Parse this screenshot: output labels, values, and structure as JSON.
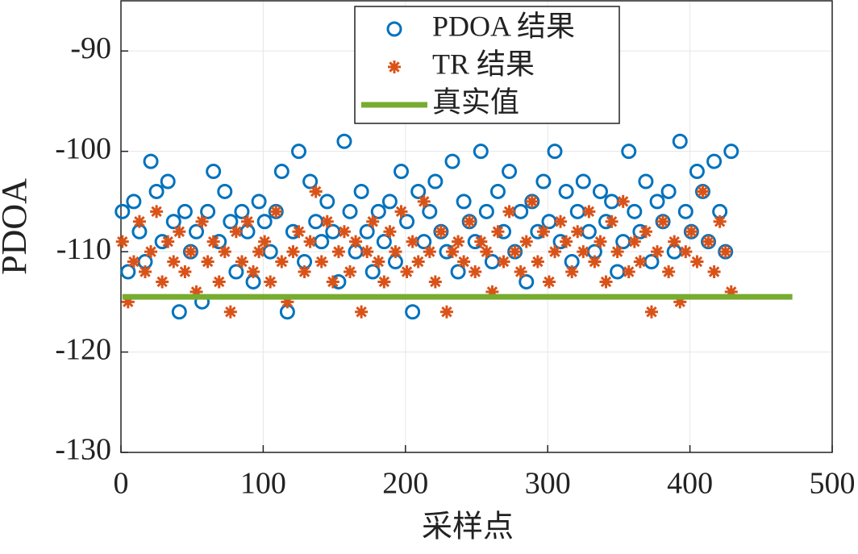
{
  "chart_data": {
    "type": "scatter",
    "xlabel": "采样点",
    "ylabel": "PDOA",
    "xlim": [
      0,
      500
    ],
    "xticks": [
      0,
      100,
      200,
      300,
      400,
      500
    ],
    "ylim": [
      -130,
      -85
    ],
    "yticks": [
      -130,
      -120,
      -110,
      -100,
      -90
    ],
    "grid": true,
    "legend": "north",
    "x": [
      1,
      5,
      9,
      13,
      17,
      21,
      25,
      29,
      33,
      37,
      41,
      45,
      49,
      53,
      57,
      61,
      65,
      69,
      73,
      77,
      81,
      85,
      89,
      93,
      97,
      101,
      105,
      109,
      113,
      117,
      121,
      125,
      129,
      133,
      137,
      141,
      145,
      149,
      153,
      157,
      161,
      165,
      169,
      173,
      177,
      181,
      185,
      189,
      193,
      197,
      201,
      205,
      209,
      213,
      217,
      221,
      225,
      229,
      233,
      237,
      241,
      245,
      249,
      253,
      257,
      261,
      265,
      269,
      273,
      277,
      281,
      285,
      289,
      293,
      297,
      301,
      305,
      309,
      313,
      317,
      321,
      325,
      329,
      333,
      337,
      341,
      345,
      349,
      353,
      357,
      361,
      365,
      369,
      373,
      377,
      381,
      385,
      389,
      393,
      397,
      401,
      405,
      409,
      413,
      417,
      421,
      425,
      429
    ],
    "series": [
      {
        "name": "PDOA 结果",
        "color": "#0072bd",
        "marker": "o",
        "values": [
          -106,
          -112,
          -105,
          -108,
          -111,
          -101,
          -104,
          -109,
          -103,
          -107,
          -116,
          -106,
          -110,
          -108,
          -115,
          -106,
          -102,
          -109,
          -104,
          -107,
          -112,
          -106,
          -108,
          -113,
          -105,
          -107,
          -110,
          -106,
          -102,
          -116,
          -108,
          -100,
          -111,
          -103,
          -107,
          -109,
          -105,
          -108,
          -113,
          -99,
          -106,
          -110,
          -104,
          -108,
          -112,
          -106,
          -109,
          -105,
          -111,
          -102,
          -107,
          -116,
          -104,
          -109,
          -106,
          -103,
          -108,
          -110,
          -101,
          -112,
          -105,
          -107,
          -109,
          -100,
          -106,
          -111,
          -104,
          -108,
          -102,
          -110,
          -106,
          -113,
          -105,
          -108,
          -103,
          -107,
          -100,
          -109,
          -104,
          -111,
          -106,
          -103,
          -108,
          -110,
          -104,
          -107,
          -105,
          -112,
          -109,
          -100,
          -106,
          -108,
          -103,
          -111,
          -105,
          -107,
          -104,
          -110,
          -99,
          -106,
          -108,
          -102,
          -104,
          -109,
          -101,
          -106,
          -110,
          -100
        ]
      },
      {
        "name": "TR 结果",
        "color": "#d95319",
        "marker": "*",
        "values": [
          -109,
          -115,
          -111,
          -107,
          -112,
          -110,
          -106,
          -113,
          -109,
          -111,
          -108,
          -112,
          -110,
          -114,
          -107,
          -111,
          -109,
          -113,
          -110,
          -116,
          -108,
          -111,
          -107,
          -112,
          -110,
          -109,
          -113,
          -106,
          -111,
          -115,
          -110,
          -108,
          -112,
          -109,
          -104,
          -111,
          -107,
          -113,
          -110,
          -108,
          -112,
          -109,
          -116,
          -110,
          -107,
          -111,
          -113,
          -108,
          -110,
          -106,
          -112,
          -109,
          -111,
          -105,
          -110,
          -113,
          -108,
          -116,
          -110,
          -109,
          -111,
          -107,
          -112,
          -109,
          -110,
          -114,
          -108,
          -111,
          -106,
          -110,
          -112,
          -109,
          -105,
          -111,
          -108,
          -113,
          -110,
          -107,
          -109,
          -112,
          -108,
          -110,
          -106,
          -111,
          -109,
          -113,
          -107,
          -110,
          -105,
          -112,
          -109,
          -111,
          -108,
          -116,
          -110,
          -107,
          -112,
          -109,
          -115,
          -110,
          -108,
          -111,
          -104,
          -109,
          -112,
          -107,
          -110,
          -114
        ]
      },
      {
        "name": "真实值",
        "color": "#77ac30",
        "marker": "line",
        "x": [
          1,
          472
        ],
        "values": [
          -114.5,
          -114.5
        ]
      }
    ]
  }
}
